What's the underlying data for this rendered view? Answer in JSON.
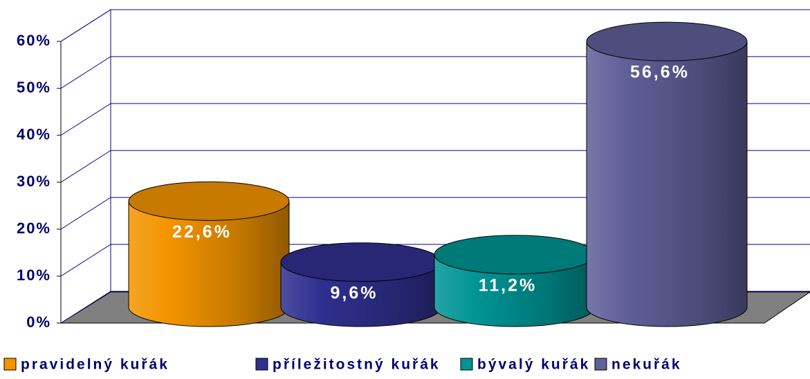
{
  "chart_data": {
    "type": "cylinder",
    "series": [
      {
        "name": "pravidelný kuřák",
        "color": "#f39400",
        "values": [
          22.6
        ],
        "value_labels": [
          "22,6%"
        ]
      },
      {
        "name": "příležitostný kuřák",
        "color": "#2f2f8f",
        "values": [
          9.6
        ],
        "value_labels": [
          "9,6%"
        ]
      },
      {
        "name": "bývalý kuřák",
        "color": "#009494",
        "values": [
          11.2
        ],
        "value_labels": [
          "11,2%"
        ]
      },
      {
        "name": "nekuřák",
        "color": "#5f5f99",
        "values": [
          56.6
        ],
        "value_labels": [
          "56,6%"
        ]
      }
    ],
    "ylim": [
      0,
      60
    ],
    "yticks": [
      {
        "value": 0,
        "label": "0%"
      },
      {
        "value": 10,
        "label": "10%"
      },
      {
        "value": 20,
        "label": "20%"
      },
      {
        "value": 30,
        "label": "30%"
      },
      {
        "value": 40,
        "label": "40%"
      },
      {
        "value": 50,
        "label": "50%"
      },
      {
        "value": 60,
        "label": "60%"
      }
    ],
    "grid": true,
    "legend": "bottom"
  }
}
